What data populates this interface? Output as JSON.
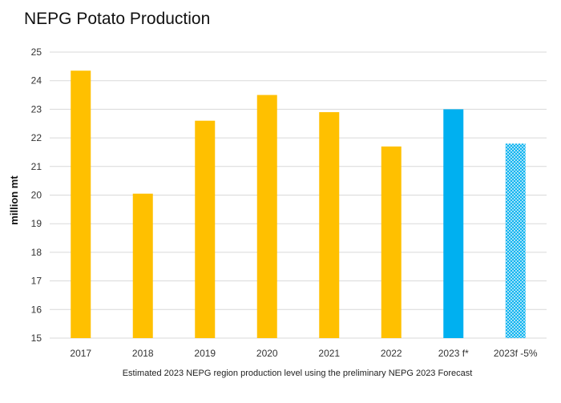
{
  "colors": {
    "actual": "#FFC000",
    "forecast": "#00B0F0",
    "forecast_pattern_bg": "#DDF3FC",
    "gridline": "#D9D9D9"
  },
  "chart_data": {
    "type": "bar",
    "title": "NEPG Potato Production",
    "ylabel": "million mt",
    "xlabel": "Estimated 2023 NEPG region production level using the preliminary NEPG 2023 Forecast",
    "ylim": [
      15,
      25
    ],
    "yticks": [
      15,
      16,
      17,
      18,
      19,
      20,
      21,
      22,
      23,
      24,
      25
    ],
    "grid": true,
    "legend": "none",
    "categories": [
      "2017",
      "2018",
      "2019",
      "2020",
      "2021",
      "2022",
      "2023 f*",
      "2023f -5%"
    ],
    "values": [
      24.35,
      20.05,
      22.6,
      23.5,
      22.9,
      21.7,
      23.0,
      21.8
    ],
    "styles": [
      "solid-gold",
      "solid-gold",
      "solid-gold",
      "solid-gold",
      "solid-gold",
      "solid-gold",
      "solid-blue",
      "hatched-blue"
    ]
  }
}
